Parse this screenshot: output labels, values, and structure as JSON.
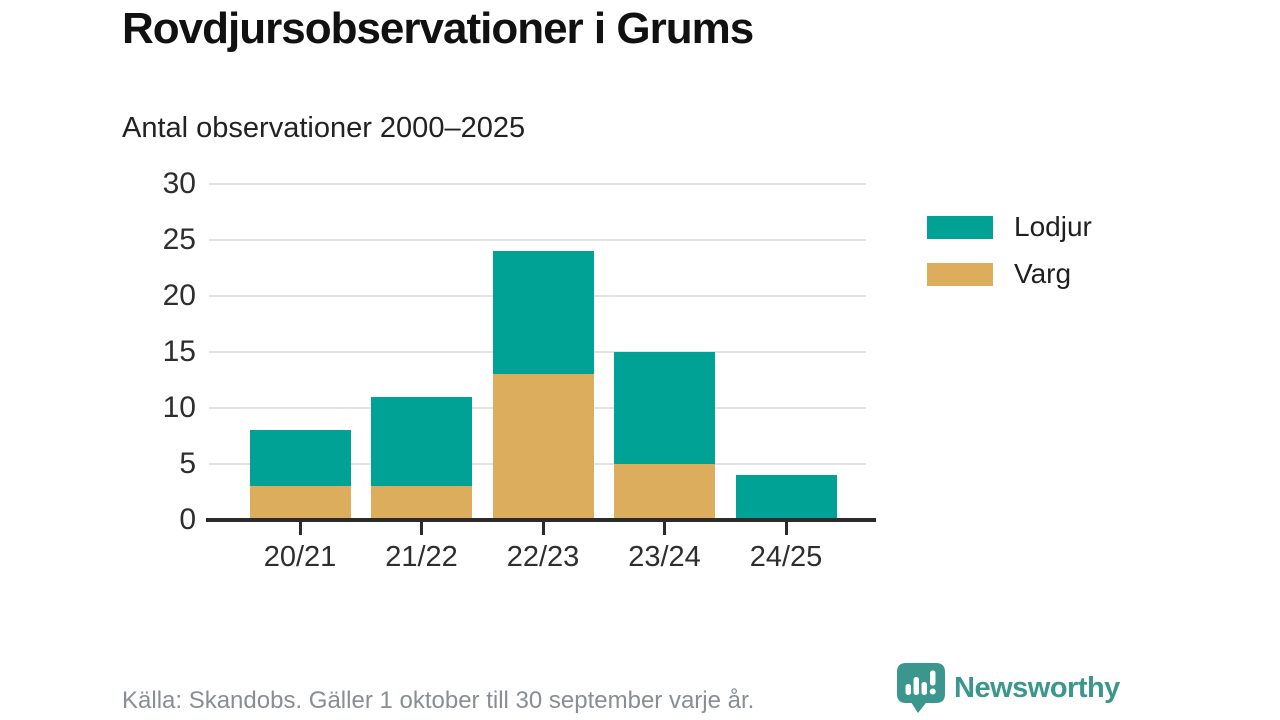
{
  "header": {
    "title": "Rovdjursobservationer i Grums",
    "subtitle": "Antal observationer 2000–2025"
  },
  "chart_data": {
    "type": "bar",
    "stacked": true,
    "title": "Rovdjursobservationer i Grums",
    "subtitle": "Antal observationer 2000–2025",
    "categories": [
      "20/21",
      "21/22",
      "22/23",
      "23/24",
      "24/25"
    ],
    "series": [
      {
        "name": "Varg",
        "color": "#DBAD5D",
        "values": [
          3,
          3,
          13,
          5,
          0
        ]
      },
      {
        "name": "Lodjur",
        "color": "#01A296",
        "values": [
          5,
          8,
          11,
          10,
          4
        ]
      }
    ],
    "stack_totals": [
      8,
      11,
      24,
      15,
      4
    ],
    "xlabel": "",
    "ylabel": "",
    "ylim": [
      0,
      30
    ],
    "yticks": [
      0,
      5,
      10,
      15,
      20,
      25,
      30
    ],
    "grid": true,
    "legend_position": "right",
    "legend_order": [
      "Lodjur",
      "Varg"
    ]
  },
  "footer": {
    "source": "Källa: Skandobs. Gäller 1 oktober till 30 september varje år.",
    "brand": "Newsworthy"
  },
  "colors": {
    "lodjur": "#01A296",
    "varg": "#DBAD5D",
    "brand_teal": "#3B968E",
    "axis_text": "#2E2E2E",
    "grid_line": "#E3E3E3",
    "baseline": "#2B2B2B",
    "footer_text": "#898E93"
  }
}
